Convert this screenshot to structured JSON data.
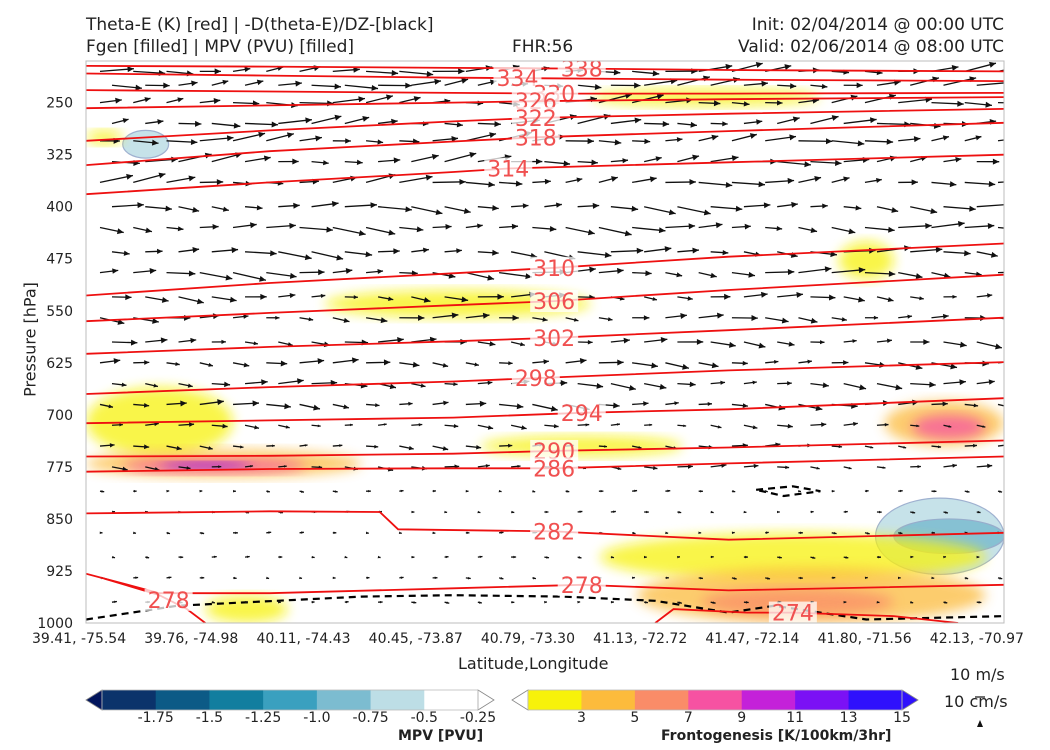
{
  "header": {
    "title_line1": "Theta-E (K) [red] | -D(theta-E)/DZ-[black]",
    "title_line2": "Fgen [filled] | MPV (PVU) [filled]",
    "fhr": "FHR:56",
    "init": "Init: 02/04/2014 @ 00:00 UTC",
    "valid": "Valid: 02/06/2014 @ 08:00 UTC"
  },
  "chart_data": {
    "type": "cross-section",
    "ylabel": "Pressure [hPa]",
    "xlabel": "Latitude,Longitude",
    "y_ticks": [
      250,
      325,
      400,
      475,
      550,
      625,
      700,
      775,
      850,
      925,
      1000
    ],
    "ylim": [
      1000,
      190
    ],
    "x_ticks": [
      "39.41, -75.54",
      "39.76, -74.98",
      "40.11, -74.43",
      "40.45, -73.87",
      "40.79, -73.30",
      "41.13, -72.72",
      "41.47, -72.14",
      "41.80, -71.56",
      "42.13, -70.97"
    ],
    "theta_e_contours": [
      {
        "label": "338",
        "at": 0.54,
        "points": [
          [
            0,
            197
          ],
          [
            0.2,
            198
          ],
          [
            0.4,
            200
          ],
          [
            0.54,
            201
          ],
          [
            0.7,
            203
          ],
          [
            1,
            205
          ]
        ]
      },
      {
        "label": "334",
        "at": 0.47,
        "points": [
          [
            0,
            208
          ],
          [
            0.2,
            211
          ],
          [
            0.4,
            214
          ],
          [
            0.5,
            215
          ],
          [
            0.7,
            217
          ],
          [
            1,
            219
          ]
        ]
      },
      {
        "label": "330",
        "at": 0.51,
        "points": [
          [
            0,
            232
          ],
          [
            0.2,
            234
          ],
          [
            0.4,
            236
          ],
          [
            0.51,
            237
          ],
          [
            0.7,
            237
          ],
          [
            1,
            236
          ]
        ]
      },
      {
        "label": "326",
        "at": 0.49,
        "points": [
          [
            0,
            258
          ],
          [
            0.2,
            254
          ],
          [
            0.4,
            250
          ],
          [
            0.49,
            248
          ],
          [
            0.7,
            245
          ],
          [
            1,
            242
          ]
        ]
      },
      {
        "label": "322",
        "at": 0.49,
        "points": [
          [
            0,
            305
          ],
          [
            0.2,
            290
          ],
          [
            0.4,
            277
          ],
          [
            0.49,
            272
          ],
          [
            0.7,
            266
          ],
          [
            1,
            259
          ]
        ]
      },
      {
        "label": "318",
        "at": 0.49,
        "points": [
          [
            0,
            340
          ],
          [
            0.2,
            320
          ],
          [
            0.4,
            306
          ],
          [
            0.49,
            300
          ],
          [
            0.7,
            291
          ],
          [
            1,
            279
          ]
        ]
      },
      {
        "label": "314",
        "at": 0.46,
        "points": [
          [
            0,
            382
          ],
          [
            0.2,
            365
          ],
          [
            0.4,
            350
          ],
          [
            0.46,
            345
          ],
          [
            0.7,
            336
          ],
          [
            1,
            325
          ]
        ]
      },
      {
        "label": "310",
        "at": 0.51,
        "points": [
          [
            0,
            528
          ],
          [
            0.2,
            510
          ],
          [
            0.4,
            496
          ],
          [
            0.51,
            488
          ],
          [
            0.7,
            472
          ],
          [
            1,
            453
          ]
        ]
      },
      {
        "label": "306",
        "at": 0.51,
        "points": [
          [
            0,
            565
          ],
          [
            0.2,
            553
          ],
          [
            0.4,
            542
          ],
          [
            0.51,
            536
          ],
          [
            0.7,
            520
          ],
          [
            1,
            498
          ]
        ]
      },
      {
        "label": "302",
        "at": 0.51,
        "points": [
          [
            0,
            612
          ],
          [
            0.2,
            602
          ],
          [
            0.4,
            594
          ],
          [
            0.51,
            589
          ],
          [
            0.7,
            578
          ],
          [
            1,
            560
          ]
        ]
      },
      {
        "label": "298",
        "at": 0.49,
        "points": [
          [
            0,
            670
          ],
          [
            0.2,
            660
          ],
          [
            0.4,
            652
          ],
          [
            0.49,
            647
          ],
          [
            0.7,
            636
          ],
          [
            1,
            624
          ]
        ]
      },
      {
        "label": "294",
        "at": 0.54,
        "points": [
          [
            0,
            712
          ],
          [
            0.2,
            708
          ],
          [
            0.4,
            704
          ],
          [
            0.54,
            697
          ],
          [
            0.7,
            692
          ],
          [
            1,
            676
          ]
        ]
      },
      {
        "label": "290",
        "at": 0.51,
        "points": [
          [
            0,
            760
          ],
          [
            0.2,
            759
          ],
          [
            0.4,
            756
          ],
          [
            0.51,
            752
          ],
          [
            0.7,
            747
          ],
          [
            1,
            737
          ]
        ]
      },
      {
        "label": "286",
        "at": 0.51,
        "points": [
          [
            0,
            782
          ],
          [
            0.2,
            778
          ],
          [
            0.4,
            777
          ],
          [
            0.51,
            777
          ],
          [
            0.7,
            770
          ],
          [
            1,
            760
          ]
        ]
      },
      {
        "label": "282",
        "at": 0.51,
        "points": [
          [
            0,
            842
          ],
          [
            0.2,
            839
          ],
          [
            0.32,
            840
          ],
          [
            0.34,
            865
          ],
          [
            0.51,
            868
          ],
          [
            0.7,
            880
          ],
          [
            1,
            870
          ]
        ]
      },
      {
        "label": "278",
        "at": 0.54,
        "points": [
          [
            0,
            929
          ],
          [
            0.08,
            957
          ],
          [
            0.2,
            957
          ],
          [
            0.4,
            950
          ],
          [
            0.54,
            945
          ],
          [
            0.7,
            953
          ],
          [
            1,
            945
          ]
        ]
      },
      {
        "label": "278",
        "at": 0.09,
        "points": [
          [
            0.02,
            936
          ],
          [
            0.08,
            960
          ],
          [
            0.11,
            980
          ],
          [
            0.13,
            1000
          ]
        ]
      },
      {
        "label": "274",
        "at": 0.77,
        "points": [
          [
            0.62,
            1000
          ],
          [
            0.64,
            980
          ],
          [
            0.72,
            985
          ],
          [
            0.77,
            985
          ],
          [
            0.88,
            990
          ],
          [
            0.95,
            1000
          ]
        ]
      }
    ],
    "fgen_regions": [
      {
        "xs": [
          0.0,
          0.04
        ],
        "ps": [
          290,
          310
        ],
        "level": 3
      },
      {
        "xs": [
          0.55,
          0.8
        ],
        "ps": [
          230,
          255
        ],
        "level": 3
      },
      {
        "xs": [
          0.82,
          0.88
        ],
        "ps": [
          450,
          505
        ],
        "level": 3
      },
      {
        "xs": [
          0.26,
          0.55
        ],
        "ps": [
          520,
          560
        ],
        "level": 3
      },
      {
        "xs": [
          0.0,
          0.16
        ],
        "ps": [
          660,
          760
        ],
        "level": 3
      },
      {
        "xs": [
          0.43,
          0.65
        ],
        "ps": [
          730,
          760
        ],
        "level": 3
      },
      {
        "xs": [
          0.0,
          0.3
        ],
        "ps": [
          750,
          790
        ],
        "level": 5
      },
      {
        "xs": [
          0.04,
          0.24
        ],
        "ps": [
          762,
          784
        ],
        "level": 9
      },
      {
        "xs": [
          0.08,
          0.18
        ],
        "ps": [
          768,
          778
        ],
        "level": 13
      },
      {
        "xs": [
          0.87,
          1.0
        ],
        "ps": [
          680,
          745
        ],
        "level": 5
      },
      {
        "xs": [
          0.9,
          0.98
        ],
        "ps": [
          700,
          735
        ],
        "level": 9
      },
      {
        "xs": [
          0.56,
          0.98
        ],
        "ps": [
          870,
          940
        ],
        "level": 3
      },
      {
        "xs": [
          0.6,
          0.98
        ],
        "ps": [
          920,
          1000
        ],
        "level": 5
      },
      {
        "xs": [
          0.67,
          0.88
        ],
        "ps": [
          950,
          990
        ],
        "level": 7
      },
      {
        "xs": [
          0.13,
          0.22
        ],
        "ps": [
          960,
          1000
        ],
        "level": 3
      }
    ],
    "mpv_regions": [
      {
        "xs": [
          0.04,
          0.09
        ],
        "ps": [
          290,
          330
        ],
        "level": -0.25
      },
      {
        "xs": [
          0.86,
          1.0
        ],
        "ps": [
          820,
          930
        ],
        "level": -0.25
      },
      {
        "xs": [
          0.88,
          1.0
        ],
        "ps": [
          850,
          900
        ],
        "level": -0.5
      }
    ],
    "stability_contours": [
      {
        "style": "dashed",
        "points": [
          [
            0,
            995
          ],
          [
            0.1,
            975
          ],
          [
            0.3,
            962
          ],
          [
            0.4,
            960
          ],
          [
            0.52,
            962
          ],
          [
            0.62,
            968
          ],
          [
            0.7,
            985
          ],
          [
            0.75,
            975
          ],
          [
            0.85,
            995
          ],
          [
            1,
            990
          ]
        ]
      },
      {
        "style": "dashed",
        "points": [
          [
            0.73,
            808
          ],
          [
            0.77,
            803
          ],
          [
            0.8,
            810
          ],
          [
            0.76,
            817
          ],
          [
            0.73,
            808
          ]
        ]
      }
    ],
    "wind_barbs": {
      "rows": [
        205,
        225,
        250,
        280,
        305,
        335,
        365,
        400,
        430,
        465,
        495,
        530,
        560,
        595,
        625,
        655,
        685,
        715,
        745,
        775,
        810,
        840,
        870,
        905,
        935,
        970
      ]
    },
    "colorbar_mpv": {
      "title": "MPV [PVU]",
      "ticks": [
        "-1.75",
        "-1.5",
        "-1.25",
        "-1.0",
        "-0.75",
        "-0.5",
        "-0.25"
      ],
      "colors": [
        "#02155c",
        "#0b336b",
        "#0c5a86",
        "#127e9f",
        "#3aa0bf",
        "#7cbcd0",
        "#bddee6",
        "#ffffff"
      ]
    },
    "colorbar_fgen": {
      "title": "Frontogenesis [K/100km/3hr]",
      "ticks": [
        "3",
        "5",
        "7",
        "9",
        "11",
        "13",
        "15"
      ],
      "colors": [
        "#ffffff",
        "#f7f20a",
        "#fcbb3c",
        "#fa8c68",
        "#f652a2",
        "#c421d9",
        "#7b11f5",
        "#2f11fc"
      ]
    },
    "vector_scale": {
      "h_label": "10 m/s",
      "v_label": "10 cm/s"
    }
  }
}
